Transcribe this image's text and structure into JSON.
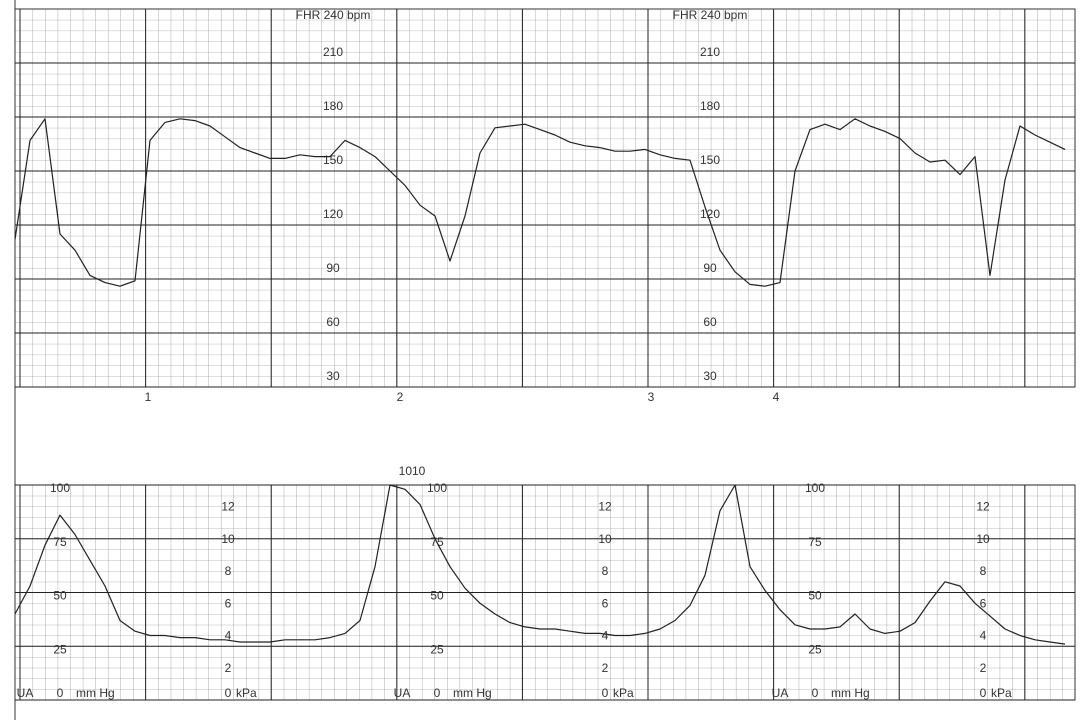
{
  "chart_data": [
    {
      "type": "line",
      "title": "FHR 240 bpm",
      "color": "#222",
      "grid": true,
      "ylim": [
        30,
        240
      ],
      "yticks": [
        30,
        60,
        90,
        120,
        150,
        180,
        210
      ],
      "annotations": [
        "1",
        "2",
        "3",
        "4"
      ],
      "values": [
        112,
        167,
        179,
        115,
        106,
        92,
        88,
        86,
        89,
        167,
        177,
        179,
        178,
        175,
        169,
        163,
        160,
        157,
        157,
        159,
        158,
        158,
        167,
        163,
        158,
        150,
        142,
        131,
        125,
        100,
        125,
        160,
        174,
        175,
        176,
        173,
        170,
        166,
        164,
        163,
        161,
        161,
        162,
        159,
        157,
        156,
        130,
        106,
        94,
        87,
        86,
        88,
        150,
        173,
        176,
        173,
        179,
        175,
        172,
        168,
        160,
        155,
        156,
        148,
        158,
        92,
        145,
        175,
        170,
        166,
        162
      ]
    },
    {
      "type": "line",
      "ylabel": "UA",
      "yunit": "mm Hg",
      "y2label": "kPa",
      "annotation": "1010",
      "color": "#222",
      "grid": true,
      "ylim": [
        0,
        100
      ],
      "yticks": [
        0,
        25,
        50,
        75,
        100
      ],
      "y2lim": [
        0,
        13.33
      ],
      "y2ticks": [
        0,
        2,
        4,
        6,
        8,
        10,
        12
      ],
      "values": [
        40,
        53,
        72,
        86,
        77,
        65,
        53,
        37,
        32,
        30,
        30,
        29,
        29,
        28,
        28,
        27,
        27,
        27,
        28,
        28,
        28,
        29,
        31,
        37,
        62,
        100,
        98,
        91,
        75,
        62,
        52,
        45,
        40,
        36,
        34,
        33,
        33,
        32,
        31,
        31,
        30,
        30,
        31,
        33,
        37,
        44,
        58,
        88,
        100,
        62,
        51,
        42,
        35,
        33,
        33,
        34,
        40,
        33,
        31,
        32,
        36,
        46,
        55,
        53,
        45,
        39,
        33,
        30,
        28,
        27,
        26
      ]
    }
  ]
}
